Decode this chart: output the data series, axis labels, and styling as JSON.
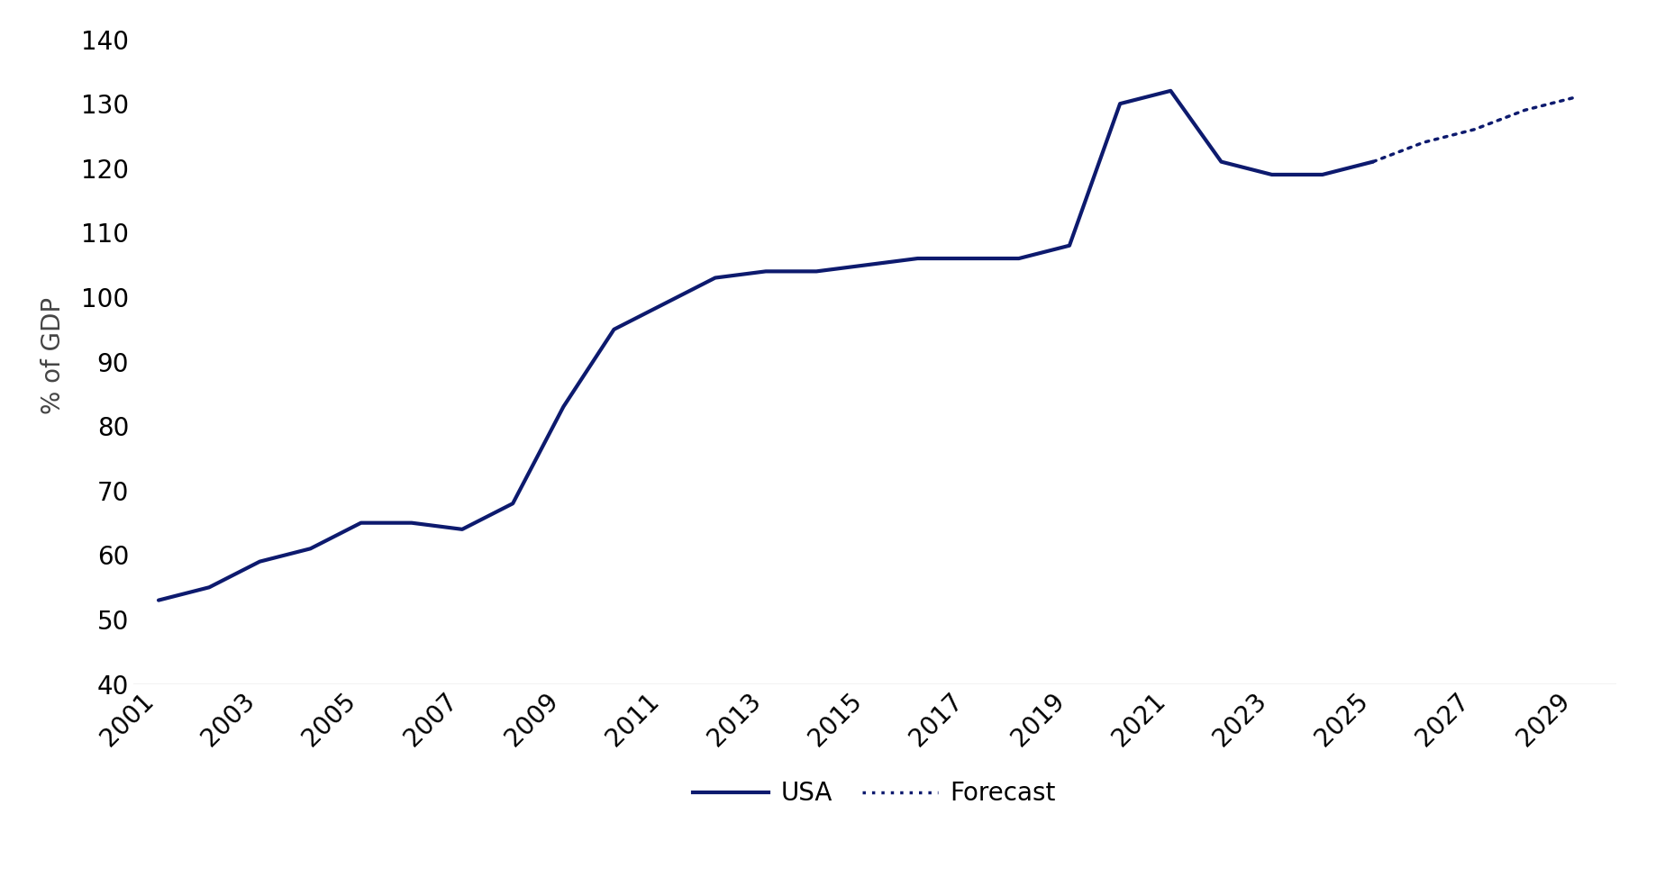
{
  "ylabel": "% of GDP",
  "line_color": "#0d1a6e",
  "background_color": "#ffffff",
  "usa_years": [
    2001,
    2002,
    2003,
    2004,
    2005,
    2006,
    2007,
    2008,
    2009,
    2010,
    2011,
    2012,
    2013,
    2014,
    2015,
    2016,
    2017,
    2018,
    2019,
    2020,
    2021,
    2022,
    2023,
    2024,
    2025
  ],
  "usa_values": [
    53,
    55,
    59,
    61,
    65,
    65,
    64,
    68,
    83,
    95,
    99,
    103,
    104,
    104,
    105,
    106,
    106,
    106,
    108,
    130,
    132,
    121,
    119,
    119,
    121
  ],
  "forecast_years": [
    2025,
    2026,
    2027,
    2028,
    2029
  ],
  "forecast_values": [
    121,
    124,
    126,
    129,
    131
  ],
  "xlim_min": 2000.5,
  "xlim_max": 2029.8,
  "ylim_min": 40,
  "ylim_max": 142,
  "yticks": [
    40,
    50,
    60,
    70,
    80,
    90,
    100,
    110,
    120,
    130,
    140
  ],
  "xticks": [
    2001,
    2003,
    2005,
    2007,
    2009,
    2011,
    2013,
    2015,
    2017,
    2019,
    2021,
    2023,
    2025,
    2027,
    2029
  ],
  "linewidth": 3.0,
  "dotlinewidth": 2.5,
  "legend_usa": "USA",
  "legend_forecast": "Forecast",
  "bottom_line_color": "#c0c0c0",
  "tick_label_color": "#000000",
  "tick_label_size": 20,
  "ylabel_size": 20,
  "ylabel_color": "#444444",
  "legend_fontsize": 20
}
